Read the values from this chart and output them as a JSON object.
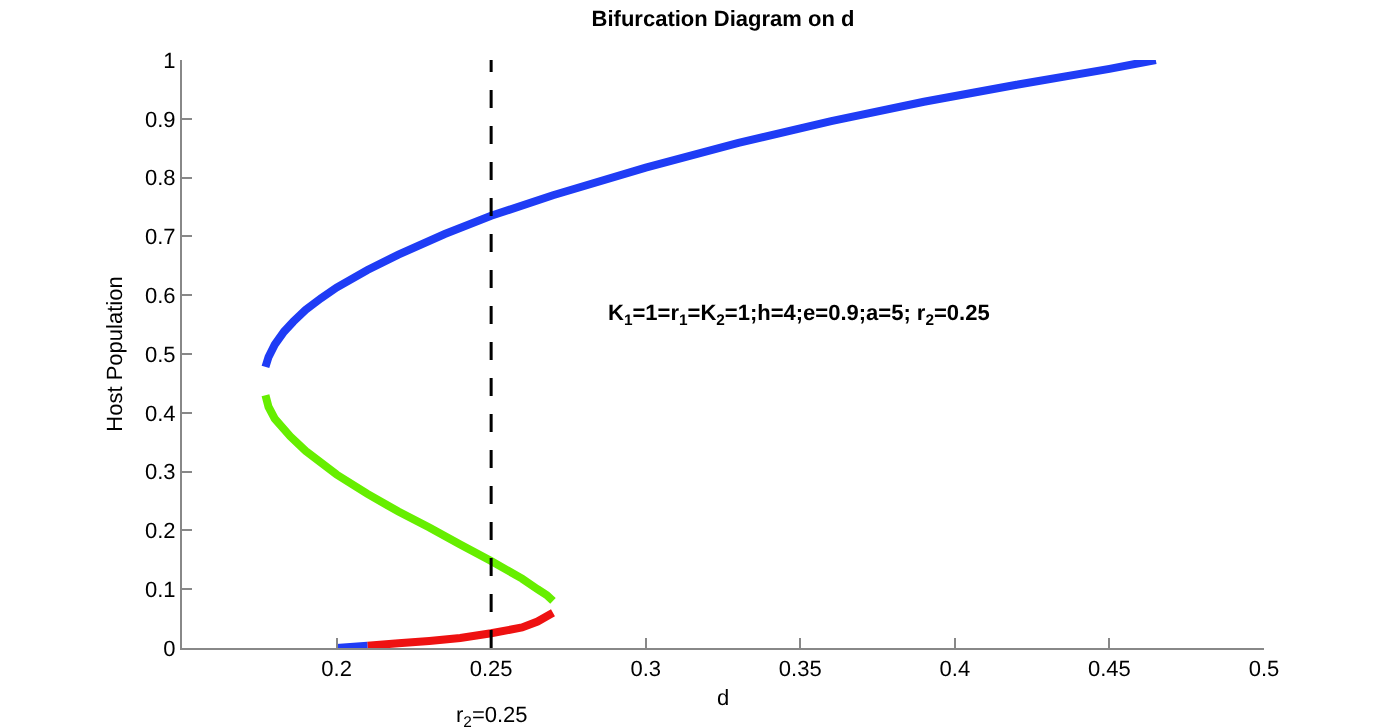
{
  "chart_data": {
    "type": "line",
    "title": "Bifurcation Diagram on d",
    "xlabel": "d",
    "ylabel": "Host Population",
    "series": [
      {
        "color": "#1f3cf5",
        "x": [
          0.177,
          0.178,
          0.18,
          0.183,
          0.186,
          0.19,
          0.195,
          0.2,
          0.21,
          0.22,
          0.235,
          0.25,
          0.27,
          0.3,
          0.33,
          0.36,
          0.39,
          0.42,
          0.45,
          0.465
        ],
        "values": [
          0.478,
          0.495,
          0.516,
          0.538,
          0.555,
          0.575,
          0.595,
          0.613,
          0.643,
          0.669,
          0.704,
          0.735,
          0.77,
          0.817,
          0.859,
          0.896,
          0.929,
          0.958,
          0.985,
          1.0
        ]
      },
      {
        "color": "#66ee00",
        "x": [
          0.177,
          0.178,
          0.18,
          0.185,
          0.19,
          0.2,
          0.21,
          0.22,
          0.23,
          0.24,
          0.25,
          0.26,
          0.265,
          0.268,
          0.27
        ],
        "values": [
          0.43,
          0.41,
          0.39,
          0.36,
          0.335,
          0.295,
          0.262,
          0.232,
          0.205,
          0.176,
          0.148,
          0.118,
          0.1,
          0.09,
          0.08
        ]
      },
      {
        "color": "#ee1111",
        "x": [
          0.21,
          0.22,
          0.23,
          0.24,
          0.25,
          0.26,
          0.265,
          0.27
        ],
        "values": [
          0.004,
          0.008,
          0.012,
          0.017,
          0.025,
          0.035,
          0.045,
          0.06
        ]
      },
      {
        "color": "#1f3cf5",
        "x": [
          0.2,
          0.21
        ],
        "values": [
          0,
          0.004
        ]
      }
    ],
    "xlim": [
      0.15,
      0.5
    ],
    "xticks": [
      0.2,
      0.25,
      0.3,
      0.35,
      0.4,
      0.45,
      0.5
    ],
    "ylim": [
      0,
      1
    ],
    "yticks": [
      0,
      0.1,
      0.2,
      0.3,
      0.4,
      0.5,
      0.6,
      0.7,
      0.8,
      0.9,
      1
    ],
    "ref_lines": [
      {
        "axis": "x",
        "value": 0.25,
        "label": "r$_{2}$=0.25",
        "color": "#000000",
        "line_style": "dashed"
      }
    ],
    "annotations": [
      "K$_{1}$=1=r$_{1}$=K$_{2}$=1;h=4;e=0.9;a=5; r$_{2}$=0.25"
    ]
  }
}
